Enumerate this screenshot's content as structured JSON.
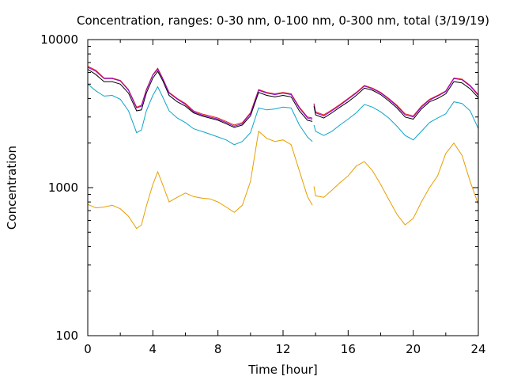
{
  "chart_data": {
    "type": "line",
    "title": "Concentration, ranges: 0-30 nm, 0-100 nm, 0-300 nm, total (3/19/19)",
    "xlabel": "Time [hour]",
    "ylabel": "Concentration",
    "xlim": [
      0,
      24
    ],
    "ylim": [
      100,
      10000
    ],
    "yscale": "log",
    "x_ticks": [
      "0",
      "4",
      "8",
      "12",
      "16",
      "20",
      "24"
    ],
    "y_ticks": [
      "100",
      "1000",
      "10000"
    ],
    "grid": false,
    "legend": "none",
    "x": [
      0,
      0.5,
      1,
      1.5,
      2,
      2.5,
      3,
      3.3,
      3.6,
      4,
      4.3,
      4.6,
      5,
      5.5,
      6,
      6.5,
      7,
      7.5,
      8,
      8.5,
      9,
      9.5,
      10,
      10.5,
      11,
      11.5,
      12,
      12.5,
      13,
      13.5,
      13.8,
      null,
      13.9,
      14,
      14.5,
      15,
      15.5,
      16,
      16.5,
      17,
      17.5,
      18,
      18.5,
      19,
      19.5,
      20,
      20.5,
      21,
      21.5,
      22,
      22.5,
      23,
      23.5,
      24
    ],
    "series": [
      {
        "color": "#e51e10",
        "values": [
          6600,
          6200,
          5500,
          5500,
          5300,
          4600,
          3500,
          3600,
          4600,
          5800,
          6400,
          5500,
          4400,
          4000,
          3700,
          3300,
          3150,
          3050,
          2950,
          2800,
          2650,
          2750,
          3200,
          4600,
          4400,
          4300,
          4400,
          4300,
          3500,
          3000,
          2950,
          null,
          3700,
          3250,
          3100,
          3350,
          3650,
          4000,
          4400,
          4900,
          4700,
          4400,
          4000,
          3600,
          3150,
          3050,
          3550,
          3950,
          4200,
          4500,
          5500,
          5400,
          4900,
          4250
        ]
      },
      {
        "color": "#9400d3",
        "values": [
          6500,
          6100,
          5450,
          5450,
          5250,
          4550,
          3450,
          3550,
          4550,
          5750,
          6300,
          5450,
          4350,
          3950,
          3650,
          3250,
          3100,
          3000,
          2900,
          2750,
          2600,
          2700,
          3150,
          4550,
          4350,
          4250,
          4350,
          4250,
          3450,
          2950,
          2900,
          null,
          3650,
          3200,
          3050,
          3300,
          3600,
          3950,
          4350,
          4850,
          4650,
          4350,
          3950,
          3550,
          3100,
          3000,
          3500,
          3900,
          4150,
          4450,
          5450,
          5350,
          4850,
          4200
        ]
      },
      {
        "color": "#000000",
        "values": [
          6300,
          5800,
          5200,
          5200,
          5000,
          4350,
          3300,
          3350,
          4350,
          5500,
          6100,
          5300,
          4200,
          3800,
          3550,
          3200,
          3050,
          2950,
          2850,
          2700,
          2550,
          2650,
          3050,
          4400,
          4200,
          4100,
          4200,
          4100,
          3300,
          2850,
          2800,
          null,
          3550,
          3100,
          2950,
          3200,
          3500,
          3800,
          4200,
          4700,
          4550,
          4250,
          3850,
          3450,
          3000,
          2900,
          3400,
          3800,
          4000,
          4300,
          5200,
          5100,
          4650,
          4050
        ]
      },
      {
        "color": "#0ea5c8",
        "values": [
          5000,
          4500,
          4150,
          4200,
          3950,
          3300,
          2350,
          2450,
          3300,
          4200,
          4800,
          4100,
          3300,
          2950,
          2750,
          2500,
          2400,
          2300,
          2200,
          2100,
          1950,
          2050,
          2350,
          3450,
          3350,
          3400,
          3500,
          3450,
          2650,
          2200,
          2050,
          null,
          2650,
          2400,
          2250,
          2400,
          2650,
          2900,
          3200,
          3650,
          3500,
          3250,
          2950,
          2600,
          2250,
          2100,
          2400,
          2750,
          2950,
          3150,
          3800,
          3700,
          3300,
          2500
        ]
      },
      {
        "color": "#e69f00",
        "values": [
          770,
          730,
          740,
          760,
          720,
          640,
          530,
          560,
          750,
          1050,
          1280,
          1050,
          800,
          860,
          920,
          870,
          850,
          840,
          800,
          740,
          680,
          760,
          1100,
          2400,
          2150,
          2050,
          2100,
          1950,
          1300,
          870,
          760,
          null,
          1020,
          880,
          860,
          960,
          1080,
          1200,
          1400,
          1500,
          1300,
          1050,
          830,
          660,
          560,
          620,
          800,
          1000,
          1200,
          1700,
          2000,
          1650,
          1100,
          770
        ]
      }
    ]
  }
}
